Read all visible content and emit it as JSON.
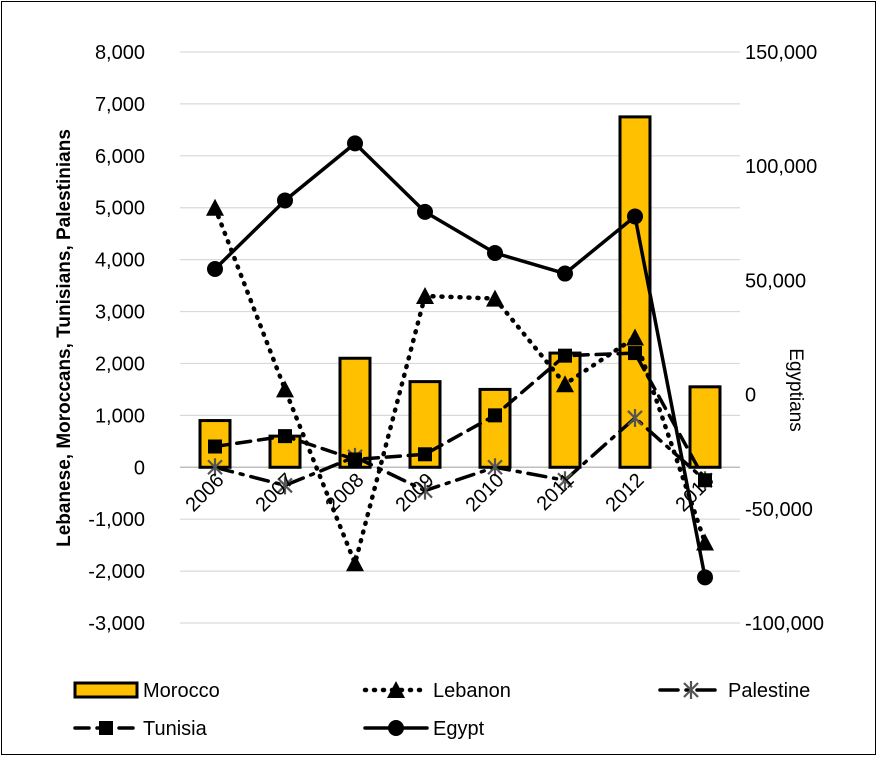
{
  "chart_data": {
    "type": "bar",
    "categories": [
      "2006",
      "2007",
      "2008",
      "2009",
      "2010",
      "2011",
      "2012",
      "2013"
    ],
    "left_axis": {
      "label": "Lebanese, Moroccans, Tunisians, Palestinians",
      "min": -3000,
      "max": 8000,
      "step": 1000,
      "tick_labels": [
        "-3,000",
        "-2,000",
        "-1,000",
        "0",
        "1,000",
        "2,000",
        "3,000",
        "4,000",
        "5,000",
        "6,000",
        "7,000",
        "8,000"
      ]
    },
    "right_axis": {
      "label": "Egyptians",
      "min": -100000,
      "max": 150000,
      "step": 50000,
      "tick_labels": [
        "-100,000",
        "-50,000",
        "0",
        "50,000",
        "100,000",
        "150,000"
      ]
    },
    "grid": true,
    "legend_position": "bottom",
    "series": [
      {
        "name": "Morocco",
        "type": "bar",
        "axis": "left",
        "color": "#FFC000",
        "values": [
          900,
          600,
          2100,
          1650,
          1500,
          2200,
          6750,
          1550
        ]
      },
      {
        "name": "Lebanon",
        "type": "line",
        "style": "dotted",
        "marker": "triangle",
        "axis": "left",
        "color": "#000000",
        "values": [
          5000,
          1500,
          -1850,
          3300,
          3250,
          1600,
          2500,
          -1450
        ]
      },
      {
        "name": "Palestine",
        "type": "line",
        "style": "dashdot",
        "marker": "star",
        "axis": "left",
        "color": "#000000",
        "values": [
          0,
          -350,
          200,
          -450,
          0,
          -250,
          950,
          -250
        ]
      },
      {
        "name": "Tunisia",
        "type": "line",
        "style": "dashed",
        "marker": "square",
        "axis": "left",
        "color": "#000000",
        "values": [
          400,
          600,
          150,
          250,
          1000,
          2150,
          2200,
          -250
        ]
      },
      {
        "name": "Egypt",
        "type": "line",
        "style": "solid",
        "marker": "circle",
        "axis": "right",
        "color": "#000000",
        "values": [
          55000,
          85000,
          110000,
          80000,
          62000,
          53000,
          78000,
          -80000
        ]
      }
    ]
  }
}
